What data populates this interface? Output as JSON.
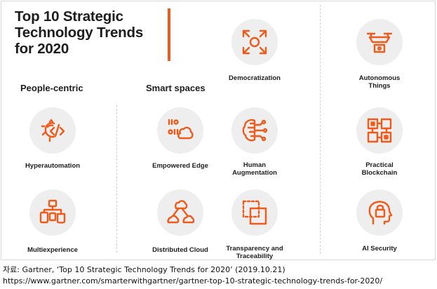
{
  "title_lines": [
    "Top 10 Strategic",
    "Technology Trends",
    "for 2020"
  ],
  "sections": {
    "people": "People-centric",
    "smart": "Smart spaces"
  },
  "trends": {
    "hyperautomation": "Hyperautomation",
    "multiexperience": "Multiexperience",
    "democratization": "Democratization",
    "empowered_edge": "Empowered Edge",
    "distributed_cloud": "Distributed Cloud",
    "human_augmentation": [
      "Human",
      "Augmentation"
    ],
    "transparency": [
      "Transparency and",
      "Traceability"
    ],
    "autonomous_things": [
      "Autonomous",
      "Things"
    ],
    "practical_blockchain": [
      "Practical",
      "Blockchain"
    ],
    "ai_security": "AI Security"
  },
  "footer": {
    "source": "자료: Gartner, ‘Top 10 Strategic Technology Trends for 2020’ (2019.10.21)",
    "url": "https://www.gartner.com/smarterwithgartner/gartner-top-10-strategic-technology-trends-for-2020/"
  },
  "colors": {
    "accent": "#f05a1a",
    "circle": "#eeeeee",
    "text": "#1d1d1d"
  },
  "icons": {
    "hyperautomation": "gear-code-icon",
    "multiexperience": "devices-icon",
    "democratization": "expand-arrows-icon",
    "empowered_edge": "edge-cloud-icon",
    "distributed_cloud": "cloud-network-icon",
    "human_augmentation": "brain-circuit-icon",
    "transparency": "layered-squares-icon",
    "autonomous_things": "drone-icon",
    "practical_blockchain": "blockchain-icon",
    "ai_security": "head-lock-icon"
  }
}
